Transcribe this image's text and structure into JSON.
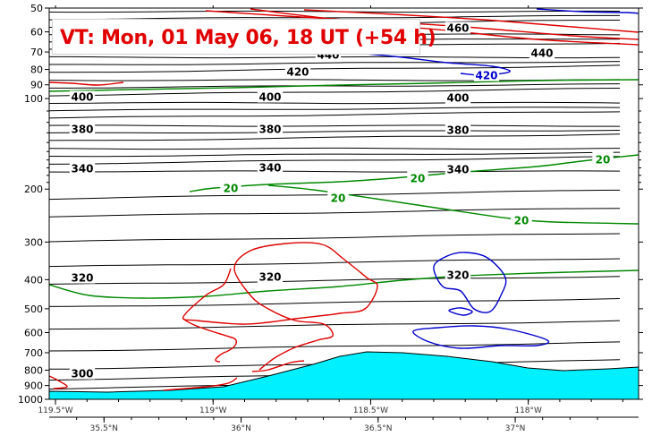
{
  "chart_data": {
    "type": "contour-cross-section",
    "title": "VT:  Mon, 01 May 06, 18 UT (+54 h)",
    "yaxis": {
      "scale": "log",
      "range": [
        1000,
        50
      ],
      "ticks": [
        50,
        60,
        70,
        80,
        90,
        100,
        200,
        300,
        400,
        500,
        600,
        700,
        800,
        900,
        1000
      ],
      "tick_labels": [
        "50",
        "60",
        "70",
        "80",
        "90",
        "100",
        "200",
        "300",
        "400",
        "500",
        "600",
        "700",
        "800",
        "900",
        "1000"
      ]
    },
    "xaxis": {
      "lon_ticks": [
        -119.5,
        -119,
        -118.5,
        -118
      ],
      "lon_labels": [
        "119.5°W",
        "119°W",
        "118.5°W",
        "118°W"
      ],
      "lat_ticks": [
        35.5,
        36,
        36.5,
        37
      ],
      "lat_labels": [
        "35.5°N",
        "36°N",
        "36.5°N",
        "37°N"
      ]
    },
    "series": [
      {
        "field": "theta",
        "color": "#000000",
        "levels": [
          300,
          320,
          340,
          380,
          400,
          420,
          440,
          460
        ],
        "labels": [
          {
            "text": "300",
            "pressure": 920
          },
          {
            "text": "320",
            "pressure": 400
          },
          {
            "text": "340",
            "pressure": 170
          },
          {
            "text": "380",
            "pressure": 130
          },
          {
            "text": "400",
            "pressure": 100
          },
          {
            "text": "420",
            "pressure": 82
          },
          {
            "text": "440",
            "pressure": 65
          },
          {
            "text": "460",
            "pressure": 58
          }
        ]
      },
      {
        "field": "wind",
        "color": "#008800",
        "levels": [
          20
        ],
        "labels": [
          {
            "text": "20"
          },
          {
            "text": "20"
          },
          {
            "text": "20"
          },
          {
            "text": "20"
          }
        ]
      },
      {
        "field": "ascent",
        "color": "#dd0000",
        "levels": [],
        "labels": []
      },
      {
        "field": "descent",
        "color": "#0000cc",
        "levels": [],
        "labels": [
          {
            "text": "420"
          },
          {
            "text": "320"
          }
        ]
      }
    ],
    "terrain": {
      "color": "#00f0ff"
    }
  }
}
